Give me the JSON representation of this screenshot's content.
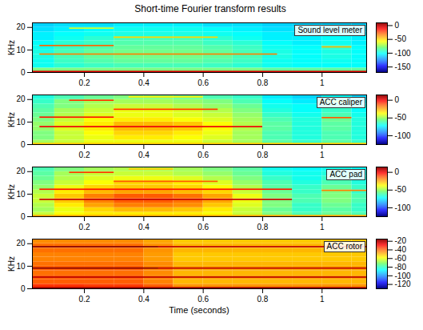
{
  "chart_data": {
    "type": "heatmap",
    "title": "Short-time Fourier transform results",
    "xlabel": "Time (seconds)",
    "panels": [
      {
        "label": "Sound level meter",
        "ylabel": "KHz",
        "xlim": [
          0.025,
          1.15
        ],
        "xticks": [
          0.2,
          0.4,
          0.6,
          0.8,
          1
        ],
        "ylim": [
          0,
          22.05
        ],
        "yticks": [
          0,
          10,
          20
        ],
        "colorbar_range": [
          -170,
          10
        ],
        "colorbar_ticks": [
          0,
          -50,
          -100,
          -150
        ],
        "t_edges": [
          0.025,
          0.1,
          0.2,
          0.3,
          0.4,
          0.5,
          0.6,
          0.7,
          0.8,
          0.9,
          1.0,
          1.1,
          1.15
        ],
        "f_edges": [
          0,
          2,
          4,
          6,
          8,
          10,
          12,
          14,
          16,
          18,
          20,
          22.05
        ],
        "cells": [
          [
            -80,
            -80,
            -80,
            -80,
            -80,
            -80,
            -80,
            -80,
            -85,
            -85,
            -85,
            -85
          ],
          [
            -100,
            -95,
            -92,
            -90,
            -90,
            -90,
            -92,
            -95,
            -100,
            -102,
            -102,
            -102
          ],
          [
            -100,
            -92,
            -88,
            -85,
            -85,
            -85,
            -88,
            -92,
            -100,
            -102,
            -100,
            -102
          ],
          [
            -98,
            -90,
            -85,
            -82,
            -82,
            -82,
            -85,
            -90,
            -98,
            -102,
            -98,
            -102
          ],
          [
            -98,
            -90,
            -85,
            -82,
            -82,
            -82,
            -85,
            -90,
            -98,
            -102,
            -98,
            -102
          ],
          [
            -100,
            -92,
            -88,
            -85,
            -85,
            -85,
            -88,
            -92,
            -100,
            -102,
            -95,
            -102
          ],
          [
            -102,
            -95,
            -92,
            -88,
            -88,
            -88,
            -92,
            -95,
            -102,
            -105,
            -100,
            -105
          ],
          [
            -105,
            -100,
            -95,
            -90,
            -90,
            -90,
            -95,
            -100,
            -105,
            -105,
            -102,
            -105
          ],
          [
            -105,
            -102,
            -100,
            -98,
            -98,
            -98,
            -100,
            -102,
            -105,
            -108,
            -105,
            -108
          ],
          [
            -108,
            -105,
            -102,
            -100,
            -100,
            -100,
            -102,
            -105,
            -108,
            -108,
            -108,
            -108
          ],
          [
            -110,
            -108,
            -108,
            -105,
            -105,
            -105,
            -108,
            -108,
            -110,
            -110,
            -110,
            -110
          ]
        ],
        "tones": [
          {
            "freq": 0.3,
            "start": 0.025,
            "end": 1.15,
            "value": -5
          },
          {
            "freq": 8,
            "start": 0.05,
            "end": 0.85,
            "value": -35
          },
          {
            "freq": 11.8,
            "start": 0.05,
            "end": 0.3,
            "value": -30
          },
          {
            "freq": 15.5,
            "start": 0.3,
            "end": 0.65,
            "value": -50
          },
          {
            "freq": 19.5,
            "start": 0.15,
            "end": 0.3,
            "value": -65
          },
          {
            "freq": 11.2,
            "start": 1.0,
            "end": 1.1,
            "value": -45
          }
        ]
      },
      {
        "label": "ACC caliper",
        "ylabel": "KHz",
        "xlim": [
          0.025,
          1.15
        ],
        "xticks": [
          0.2,
          0.4,
          0.6,
          0.8,
          1
        ],
        "ylim": [
          0,
          22.05
        ],
        "yticks": [
          0,
          10,
          20
        ],
        "colorbar_range": [
          -125,
          15
        ],
        "colorbar_ticks": [
          0,
          -50,
          -100
        ],
        "t_edges": [
          0.025,
          0.1,
          0.2,
          0.3,
          0.4,
          0.5,
          0.6,
          0.7,
          0.8,
          0.9,
          1.0,
          1.1,
          1.15
        ],
        "f_edges": [
          0,
          2,
          4,
          6,
          8,
          10,
          12,
          14,
          16,
          18,
          20,
          22.05
        ],
        "cells": [
          [
            -50,
            -45,
            -40,
            -40,
            -40,
            -40,
            -45,
            -50,
            -60,
            -65,
            -60,
            -65
          ],
          [
            -55,
            -45,
            -40,
            -35,
            -35,
            -38,
            -42,
            -50,
            -62,
            -68,
            -62,
            -68
          ],
          [
            -55,
            -45,
            -38,
            -32,
            -32,
            -35,
            -40,
            -50,
            -62,
            -68,
            -62,
            -68
          ],
          [
            -52,
            -42,
            -35,
            -28,
            -28,
            -30,
            -38,
            -48,
            -60,
            -68,
            -60,
            -68
          ],
          [
            -52,
            -42,
            -35,
            -28,
            -28,
            -30,
            -38,
            -48,
            -60,
            -68,
            -60,
            -68
          ],
          [
            -55,
            -45,
            -38,
            -35,
            -35,
            -38,
            -42,
            -50,
            -62,
            -68,
            -58,
            -68
          ],
          [
            -58,
            -48,
            -42,
            -40,
            -40,
            -42,
            -45,
            -52,
            -65,
            -70,
            -62,
            -70
          ],
          [
            -60,
            -50,
            -45,
            -40,
            -40,
            -42,
            -48,
            -55,
            -68,
            -72,
            -65,
            -72
          ],
          [
            -62,
            -55,
            -48,
            -45,
            -45,
            -48,
            -52,
            -58,
            -70,
            -72,
            -68,
            -72
          ],
          [
            -65,
            -55,
            -50,
            -50,
            -50,
            -52,
            -55,
            -62,
            -72,
            -75,
            -70,
            -75
          ],
          [
            -68,
            -62,
            -58,
            -55,
            -55,
            -58,
            -62,
            -65,
            -75,
            -78,
            -72,
            -78
          ]
        ],
        "tones": [
          {
            "freq": 0.3,
            "start": 0.025,
            "end": 1.15,
            "value": -30
          },
          {
            "freq": 7.8,
            "start": 0.05,
            "end": 0.8,
            "value": 0
          },
          {
            "freq": 12,
            "start": 0.05,
            "end": 0.3,
            "value": -5
          },
          {
            "freq": 15.5,
            "start": 0.3,
            "end": 0.65,
            "value": -10
          },
          {
            "freq": 19.5,
            "start": 0.15,
            "end": 0.3,
            "value": -10
          },
          {
            "freq": 21,
            "start": 0.35,
            "end": 0.6,
            "value": -35
          },
          {
            "freq": 11.8,
            "start": 1.0,
            "end": 1.1,
            "value": -15
          },
          {
            "freq": 19,
            "start": 1.0,
            "end": 1.1,
            "value": -45
          }
        ]
      },
      {
        "label": "ACC pad",
        "ylabel": "KHz",
        "xlim": [
          0.025,
          1.15
        ],
        "xticks": [
          0.2,
          0.4,
          0.6,
          0.8,
          1
        ],
        "ylim": [
          0,
          22.05
        ],
        "yticks": [
          0,
          10,
          20
        ],
        "colorbar_range": [
          -125,
          15
        ],
        "colorbar_ticks": [
          0,
          -50,
          -100
        ],
        "t_edges": [
          0.025,
          0.1,
          0.2,
          0.3,
          0.4,
          0.5,
          0.6,
          0.7,
          0.8,
          0.9,
          1.0,
          1.1,
          1.15
        ],
        "f_edges": [
          0,
          2,
          4,
          6,
          8,
          10,
          12,
          14,
          16,
          18,
          20,
          22.05
        ],
        "cells": [
          [
            -45,
            -38,
            -35,
            -35,
            -35,
            -35,
            -38,
            -45,
            -55,
            -62,
            -58,
            -62
          ],
          [
            -50,
            -40,
            -32,
            -28,
            -28,
            -30,
            -35,
            -45,
            -58,
            -65,
            -60,
            -65
          ],
          [
            -48,
            -35,
            -25,
            -20,
            -20,
            -22,
            -30,
            -42,
            -55,
            -65,
            -58,
            -65
          ],
          [
            -45,
            -30,
            -20,
            -15,
            -15,
            -18,
            -25,
            -40,
            -55,
            -62,
            -55,
            -62
          ],
          [
            -45,
            -30,
            -20,
            -15,
            -15,
            -18,
            -25,
            -40,
            -55,
            -62,
            -55,
            -62
          ],
          [
            -48,
            -35,
            -28,
            -25,
            -25,
            -28,
            -32,
            -45,
            -58,
            -65,
            -55,
            -65
          ],
          [
            -52,
            -40,
            -32,
            -30,
            -30,
            -32,
            -38,
            -48,
            -60,
            -65,
            -58,
            -65
          ],
          [
            -55,
            -45,
            -38,
            -32,
            -32,
            -35,
            -42,
            -52,
            -62,
            -68,
            -62,
            -68
          ],
          [
            -58,
            -48,
            -42,
            -40,
            -40,
            -42,
            -48,
            -55,
            -65,
            -70,
            -65,
            -70
          ],
          [
            -60,
            -50,
            -45,
            -45,
            -45,
            -48,
            -52,
            -58,
            -68,
            -70,
            -68,
            -70
          ],
          [
            -62,
            -55,
            -50,
            -48,
            -48,
            -50,
            -55,
            -60,
            -70,
            -72,
            -70,
            -72
          ]
        ],
        "tones": [
          {
            "freq": 0.3,
            "start": 0.025,
            "end": 1.15,
            "value": -25
          },
          {
            "freq": 7.5,
            "start": 0.05,
            "end": 0.9,
            "value": 5
          },
          {
            "freq": 12,
            "start": 0.05,
            "end": 0.9,
            "value": -5
          },
          {
            "freq": 15.5,
            "start": 0.3,
            "end": 0.65,
            "value": -15
          },
          {
            "freq": 19.5,
            "start": 0.15,
            "end": 0.3,
            "value": -10
          },
          {
            "freq": 21,
            "start": 0.35,
            "end": 0.5,
            "value": -30
          },
          {
            "freq": 11.5,
            "start": 1.0,
            "end": 1.15,
            "value": -20
          }
        ]
      },
      {
        "label": "ACC rotor",
        "ylabel": "KHz",
        "xlim": [
          0.025,
          1.15
        ],
        "xticks": [
          0.2,
          0.4,
          0.6,
          0.8,
          1
        ],
        "ylim": [
          0,
          22.05
        ],
        "yticks": [
          0,
          10,
          20
        ],
        "colorbar_range": [
          -130,
          -15
        ],
        "colorbar_ticks": [
          -20,
          -40,
          -60,
          -80,
          -100,
          -120
        ],
        "t_edges": [
          0.025,
          0.1,
          0.2,
          0.3,
          0.4,
          0.5,
          0.6,
          0.7,
          0.8,
          0.9,
          1.0,
          1.1,
          1.15
        ],
        "f_edges": [
          0,
          2,
          4,
          6,
          8,
          10,
          12,
          14,
          16,
          18,
          20,
          22.05
        ],
        "cells": [
          [
            -35,
            -35,
            -36,
            -36,
            -40,
            -46,
            -46,
            -46,
            -46,
            -46,
            -46,
            -46
          ],
          [
            -40,
            -40,
            -40,
            -40,
            -44,
            -50,
            -50,
            -50,
            -50,
            -50,
            -50,
            -50
          ],
          [
            -40,
            -40,
            -40,
            -40,
            -44,
            -48,
            -48,
            -48,
            -48,
            -48,
            -48,
            -48
          ],
          [
            -42,
            -42,
            -42,
            -42,
            -45,
            -50,
            -50,
            -50,
            -50,
            -50,
            -50,
            -50
          ],
          [
            -40,
            -40,
            -40,
            -40,
            -44,
            -48,
            -48,
            -48,
            -48,
            -48,
            -48,
            -48
          ],
          [
            -42,
            -42,
            -42,
            -42,
            -45,
            -50,
            -50,
            -50,
            -50,
            -50,
            -50,
            -50
          ],
          [
            -44,
            -44,
            -44,
            -44,
            -47,
            -52,
            -52,
            -52,
            -52,
            -52,
            -52,
            -52
          ],
          [
            -44,
            -44,
            -44,
            -44,
            -47,
            -52,
            -52,
            -52,
            -52,
            -52,
            -52,
            -52
          ],
          [
            -42,
            -42,
            -42,
            -42,
            -46,
            -50,
            -50,
            -50,
            -50,
            -50,
            -50,
            -50
          ],
          [
            -42,
            -42,
            -42,
            -42,
            -46,
            -50,
            -50,
            -50,
            -50,
            -50,
            -50,
            -50
          ],
          [
            -45,
            -45,
            -45,
            -45,
            -48,
            -52,
            -52,
            -52,
            -52,
            -52,
            -52,
            -52
          ]
        ],
        "tones": [
          {
            "freq": 0.3,
            "start": 0.025,
            "end": 1.15,
            "value": -18
          },
          {
            "freq": 5,
            "start": 0.025,
            "end": 1.15,
            "value": -22
          },
          {
            "freq": 9,
            "start": 0.025,
            "end": 0.45,
            "value": -16
          },
          {
            "freq": 9,
            "start": 0.45,
            "end": 1.15,
            "value": -22
          },
          {
            "freq": 18.5,
            "start": 0.025,
            "end": 0.45,
            "value": -16
          },
          {
            "freq": 18.5,
            "start": 0.45,
            "end": 1.15,
            "value": -22
          }
        ]
      }
    ]
  }
}
